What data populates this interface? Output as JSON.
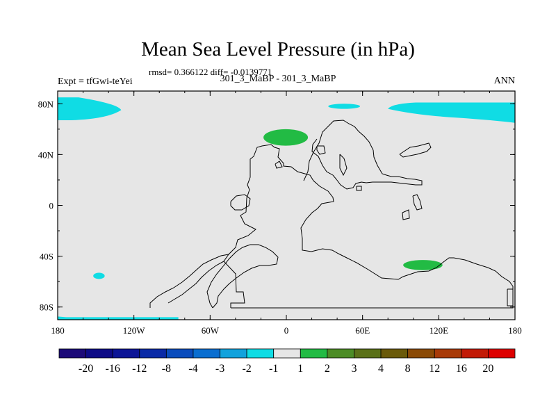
{
  "chart_data": {
    "type": "heatmap",
    "title": "Mean Sea Level Pressure (in hPa)",
    "stats": "rmsd= 0.366122 diff= -0.0139771",
    "expt": "Expt = tfGwi-teYei",
    "comparison": "301_3_MaBP - 301_3_MaBP",
    "season": "ANN",
    "projection": "cylindrical equidistant",
    "xlim": [
      -180,
      180
    ],
    "ylim": [
      -90,
      90
    ],
    "x_ticks": [
      {
        "value": -180,
        "label": "180"
      },
      {
        "value": -120,
        "label": "120W"
      },
      {
        "value": -60,
        "label": "60W"
      },
      {
        "value": 0,
        "label": "0"
      },
      {
        "value": 60,
        "label": "60E"
      },
      {
        "value": 120,
        "label": "120E"
      },
      {
        "value": 180,
        "label": "180"
      }
    ],
    "y_ticks": [
      {
        "value": 80,
        "label": "80N"
      },
      {
        "value": 40,
        "label": "40N"
      },
      {
        "value": 0,
        "label": "0"
      },
      {
        "value": -40,
        "label": "40S"
      },
      {
        "value": -80,
        "label": "80S"
      }
    ],
    "colorbar": {
      "levels": [
        "-20",
        "-16",
        "-12",
        "-8",
        "-4",
        "-3",
        "-2",
        "-1",
        "1",
        "2",
        "3",
        "4",
        "8",
        "12",
        "16",
        "20"
      ],
      "colors": [
        "#1c0a78",
        "#0e0b86",
        "#0c1596",
        "#0a2aa6",
        "#0a4cbc",
        "#0a6ed0",
        "#12a2dc",
        "#10dce4",
        "#e6e6e6",
        "#22bb44",
        "#4c8c26",
        "#5a7018",
        "#6a5a0a",
        "#8a4a06",
        "#a83a08",
        "#c21a06",
        "#dd0000"
      ]
    },
    "background_value_range": "-1 to 1",
    "regions": [
      {
        "name": "arctic-north-america-low",
        "range": "-2 to -1",
        "lon": [
          -180,
          -130
        ],
        "lat": [
          67,
          85
        ]
      },
      {
        "name": "arctic-siberia-low",
        "range": "-2 to -1",
        "lon": [
          80,
          180
        ],
        "lat": [
          65,
          80
        ]
      },
      {
        "name": "arctic-barents-low",
        "range": "-2 to -1",
        "lon": [
          33,
          58
        ],
        "lat": [
          76,
          80
        ]
      },
      {
        "name": "north-atlantic-high",
        "range": "1 to 2",
        "lon": [
          -18,
          17
        ],
        "lat": [
          47,
          60
        ]
      },
      {
        "name": "south-indian-high",
        "range": "1 to 2",
        "lon": [
          92,
          123
        ],
        "lat": [
          -51,
          -43
        ]
      },
      {
        "name": "south-pacific-low",
        "range": "-2 to -1",
        "lon": [
          -152,
          -143
        ],
        "lat": [
          -58,
          -53
        ]
      },
      {
        "name": "antarctic-low",
        "range": "-2 to -1",
        "lon": [
          -180,
          -85
        ],
        "lat": [
          -91,
          -88
        ]
      }
    ]
  }
}
